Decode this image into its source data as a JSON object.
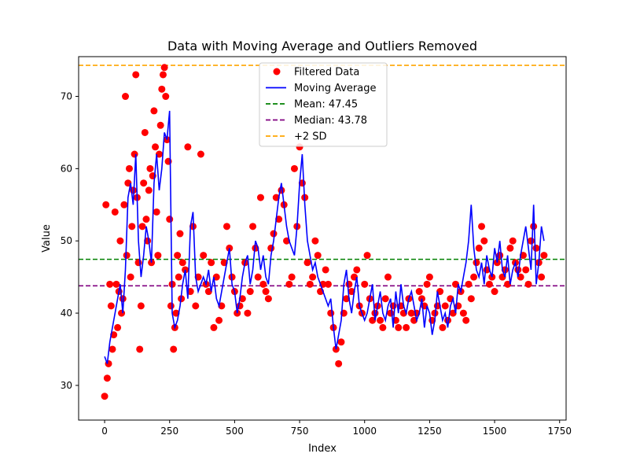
{
  "chart_data": {
    "type": "scatter",
    "title": "Data with Moving Average and Outliers Removed",
    "xlabel": "Index",
    "ylabel": "Value",
    "xlim": [
      -100,
      1775
    ],
    "ylim": [
      25.2,
      75.5
    ],
    "xticks": [
      0,
      250,
      500,
      750,
      1000,
      1250,
      1500,
      1750
    ],
    "yticks": [
      30,
      40,
      50,
      60,
      70
    ],
    "grid": false,
    "legend_position": "upper-center",
    "legend": [
      {
        "label": "Filtered Data",
        "kind": "marker",
        "color": "#ff0000"
      },
      {
        "label": "Moving Average",
        "kind": "line",
        "color": "#0000ff"
      },
      {
        "label": "Mean: 47.45",
        "kind": "dashed",
        "color": "#008000"
      },
      {
        "label": "Median: 43.78",
        "kind": "dashed",
        "color": "#800080"
      },
      {
        "label": "+2 SD",
        "kind": "dashed",
        "color": "#ffa500"
      }
    ],
    "reference_lines": [
      {
        "name": "Mean: 47.45",
        "y": 47.45,
        "color": "#008000"
      },
      {
        "name": "Median: 43.78",
        "y": 43.78,
        "color": "#800080"
      },
      {
        "name": "+2 SD",
        "y": 74.3,
        "color": "#ffa500"
      }
    ],
    "series": [
      {
        "name": "Filtered Data",
        "kind": "scatter",
        "color": "#ff0000",
        "x": [
          0,
          5,
          10,
          15,
          20,
          25,
          30,
          35,
          40,
          45,
          50,
          55,
          60,
          65,
          70,
          75,
          80,
          85,
          90,
          95,
          100,
          105,
          110,
          115,
          120,
          125,
          130,
          135,
          140,
          145,
          150,
          155,
          160,
          165,
          170,
          175,
          180,
          185,
          190,
          195,
          200,
          205,
          210,
          215,
          220,
          225,
          230,
          235,
          240,
          245,
          250,
          255,
          260,
          265,
          270,
          275,
          280,
          285,
          290,
          295,
          300,
          310,
          320,
          330,
          340,
          350,
          360,
          370,
          380,
          390,
          400,
          410,
          420,
          430,
          440,
          450,
          460,
          470,
          480,
          490,
          500,
          510,
          520,
          530,
          540,
          550,
          560,
          570,
          580,
          590,
          600,
          610,
          620,
          630,
          640,
          650,
          660,
          670,
          680,
          690,
          700,
          710,
          720,
          730,
          740,
          750,
          760,
          770,
          780,
          790,
          800,
          810,
          820,
          830,
          840,
          850,
          860,
          870,
          880,
          890,
          900,
          910,
          920,
          930,
          940,
          950,
          960,
          970,
          980,
          990,
          1000,
          1010,
          1020,
          1030,
          1040,
          1050,
          1060,
          1070,
          1080,
          1090,
          1100,
          1110,
          1120,
          1130,
          1140,
          1150,
          1160,
          1170,
          1180,
          1190,
          1200,
          1210,
          1220,
          1230,
          1240,
          1250,
          1260,
          1270,
          1280,
          1290,
          1300,
          1310,
          1320,
          1330,
          1340,
          1350,
          1360,
          1370,
          1380,
          1390,
          1400,
          1410,
          1420,
          1430,
          1440,
          1450,
          1460,
          1470,
          1480,
          1490,
          1500,
          1510,
          1520,
          1530,
          1540,
          1550,
          1560,
          1570,
          1580,
          1590,
          1600,
          1610,
          1620,
          1630,
          1640,
          1650,
          1660,
          1670,
          1680,
          1690
        ],
        "values": [
          28.5,
          55,
          31,
          33,
          44,
          41,
          35,
          37,
          54,
          44,
          38,
          43,
          50,
          40,
          42,
          55,
          70,
          48,
          58,
          60,
          45,
          52,
          57,
          62,
          73,
          56,
          47,
          35,
          41,
          52,
          58,
          65,
          53,
          50,
          57,
          60,
          47,
          59,
          68,
          63,
          54,
          48,
          62,
          66,
          71,
          73,
          74,
          70,
          64,
          61,
          53,
          41,
          44,
          35,
          38,
          40,
          48,
          45,
          51,
          42,
          47,
          46,
          63,
          43,
          52,
          41,
          45,
          62,
          48,
          44,
          43,
          47,
          38,
          45,
          39,
          41,
          47,
          52,
          49,
          45,
          43,
          40,
          41,
          42,
          47,
          40,
          43,
          52,
          49,
          45,
          56,
          44,
          43,
          42,
          49,
          51,
          56,
          53,
          57,
          55,
          50,
          44,
          45,
          60,
          52,
          63,
          58,
          56,
          47,
          44,
          45,
          50,
          48,
          43,
          44,
          46,
          44,
          40,
          38,
          35,
          33,
          36,
          40,
          42,
          44,
          43,
          45,
          46,
          41,
          40,
          44,
          48,
          42,
          39,
          40,
          41,
          39,
          38,
          42,
          45,
          40,
          41,
          39,
          38,
          41,
          40,
          38,
          42,
          40,
          39,
          40,
          43,
          42,
          41,
          44,
          45,
          39,
          40,
          41,
          43,
          38,
          41,
          39,
          42,
          40,
          44,
          41,
          43,
          40,
          39,
          44,
          42,
          45,
          47,
          49,
          52,
          50,
          46,
          44,
          45,
          43,
          47,
          48,
          45,
          46,
          44,
          49,
          50,
          47,
          46,
          45,
          48,
          46,
          44,
          50,
          52,
          49,
          47,
          45,
          48
        ]
      },
      {
        "name": "Moving Average",
        "kind": "line",
        "color": "#0000ff",
        "x": [
          0,
          10,
          20,
          30,
          40,
          50,
          60,
          70,
          80,
          90,
          100,
          110,
          120,
          130,
          140,
          150,
          160,
          170,
          180,
          190,
          200,
          210,
          220,
          230,
          240,
          250,
          260,
          270,
          280,
          290,
          300,
          310,
          320,
          330,
          340,
          350,
          360,
          370,
          380,
          390,
          400,
          410,
          420,
          430,
          440,
          450,
          460,
          470,
          480,
          490,
          500,
          510,
          520,
          530,
          540,
          550,
          560,
          570,
          580,
          590,
          600,
          610,
          620,
          630,
          640,
          650,
          660,
          670,
          680,
          690,
          700,
          710,
          720,
          730,
          740,
          750,
          760,
          770,
          780,
          790,
          800,
          810,
          820,
          830,
          840,
          850,
          860,
          870,
          880,
          890,
          900,
          910,
          920,
          930,
          940,
          950,
          960,
          970,
          980,
          990,
          1000,
          1010,
          1020,
          1030,
          1040,
          1050,
          1060,
          1070,
          1080,
          1090,
          1100,
          1110,
          1120,
          1130,
          1140,
          1150,
          1160,
          1170,
          1180,
          1190,
          1200,
          1210,
          1220,
          1230,
          1240,
          1250,
          1260,
          1270,
          1280,
          1290,
          1300,
          1310,
          1320,
          1330,
          1340,
          1350,
          1360,
          1370,
          1380,
          1390,
          1400,
          1410,
          1420,
          1430,
          1440,
          1450,
          1460,
          1470,
          1480,
          1490,
          1500,
          1510,
          1520,
          1530,
          1540,
          1550,
          1560,
          1570,
          1580,
          1590,
          1600,
          1610,
          1620,
          1630,
          1640,
          1650,
          1660,
          1670,
          1680,
          1690
        ],
        "values": [
          34,
          33,
          36,
          38,
          40,
          42,
          44,
          40,
          46,
          56,
          58,
          55,
          62,
          50,
          45,
          48,
          52,
          50,
          47,
          58,
          62,
          57,
          60,
          65,
          64,
          68,
          40,
          38,
          39,
          41,
          44,
          46,
          42,
          52,
          54,
          45,
          43,
          44,
          45,
          44,
          46,
          43,
          45,
          42,
          41,
          43,
          45,
          47,
          49,
          44,
          43,
          40,
          42,
          45,
          47,
          48,
          44,
          46,
          50,
          49,
          46,
          48,
          45,
          44,
          48,
          50,
          53,
          56,
          58,
          55,
          52,
          50,
          49,
          48,
          52,
          58,
          62,
          55,
          50,
          48,
          46,
          47,
          45,
          44,
          43,
          42,
          41,
          42,
          38,
          35,
          37,
          39,
          44,
          46,
          42,
          40,
          43,
          45,
          41,
          40,
          39,
          40,
          42,
          44,
          39,
          41,
          43,
          40,
          39,
          41,
          42,
          38,
          43,
          40,
          44,
          41,
          40,
          42,
          43,
          41,
          39,
          40,
          42,
          38,
          41,
          40,
          37,
          39,
          43,
          41,
          39,
          40,
          38,
          41,
          42,
          40,
          44,
          43,
          45,
          47,
          50,
          55,
          49,
          46,
          45,
          47,
          44,
          48,
          46,
          45,
          49,
          47,
          50,
          46,
          45,
          48,
          44,
          46,
          47,
          45,
          48,
          50,
          52,
          49,
          46,
          55,
          44,
          47,
          52,
          50
        ]
      }
    ]
  }
}
